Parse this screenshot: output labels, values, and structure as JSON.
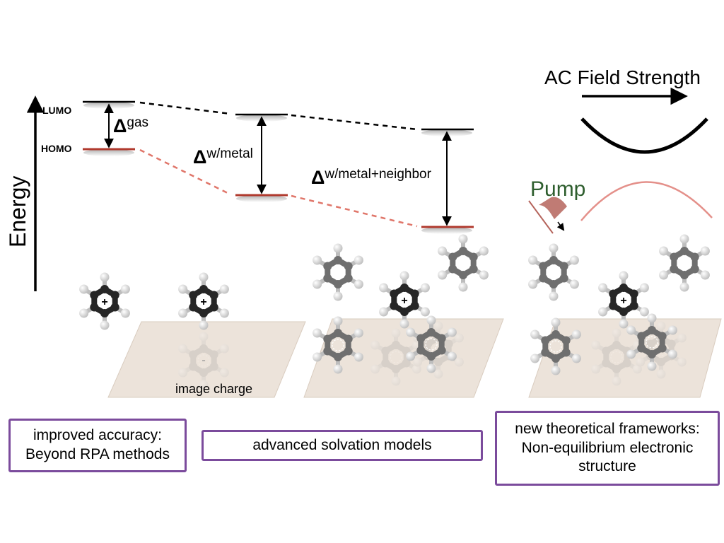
{
  "energy_axis": {
    "label": "Energy"
  },
  "levels": {
    "lumo": "LUMO",
    "homo": "HOMO"
  },
  "gaps": {
    "gas": {
      "symbol": "Δ",
      "sup": "gas"
    },
    "metal": {
      "symbol": "Δ",
      "sup": "w/metal"
    },
    "metal_neighbor": {
      "symbol": "Δ",
      "sup": "w/metal+neighbor"
    }
  },
  "ac_field": {
    "title": "AC Field Strength"
  },
  "pump": {
    "label": "Pump"
  },
  "molecule": {
    "cation_sign": "+",
    "image_sign": "-"
  },
  "image_charge": {
    "label": "image charge"
  },
  "boxes": {
    "accuracy": {
      "line1": "improved accuracy:",
      "line2": "Beyond RPA methods"
    },
    "solvation": {
      "line1": "advanced solvation models"
    },
    "frameworks": {
      "line1": "new theoretical frameworks:",
      "line2": "Non-equilibrium electronic",
      "line3": "structure"
    }
  },
  "colors": {
    "lumo_level": "#000000",
    "homo_level": "#b03a2e",
    "homo_dash": "#e0766a",
    "pump_text": "#2e5e2e",
    "field_curve": "#000000",
    "pump_curve": "#e4908a",
    "box_border": "#7b4b9c",
    "surface": "#ece3da",
    "carbon_dark": "#262626",
    "carbon_light": "#6f6f6f"
  }
}
